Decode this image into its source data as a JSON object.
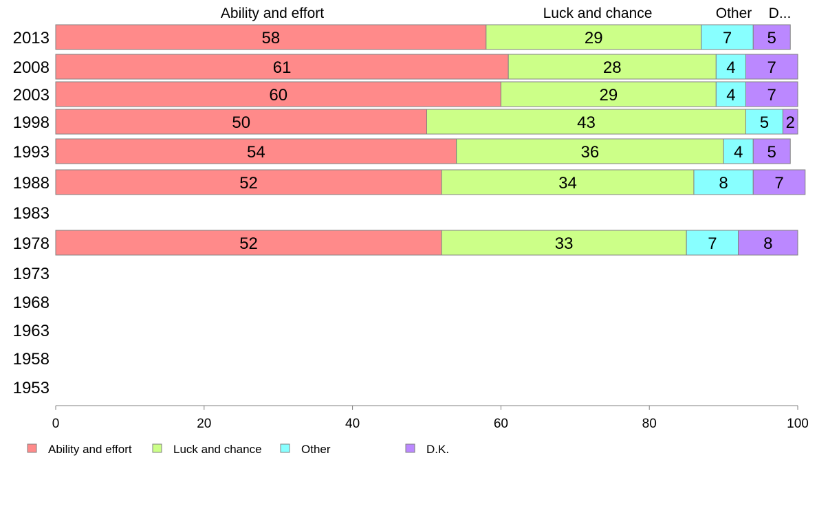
{
  "chart_data": {
    "type": "bar",
    "orientation": "horizontal",
    "stacked": true,
    "categories": [
      "2013",
      "2008",
      "2003",
      "1998",
      "1993",
      "1988",
      "1983",
      "1978",
      "1973",
      "1968",
      "1963",
      "1958",
      "1953"
    ],
    "series": [
      {
        "name": "Ability and effort",
        "color": "#ff8a8a",
        "values": [
          58,
          61,
          60,
          50,
          54,
          52,
          null,
          52,
          null,
          null,
          null,
          null,
          null
        ]
      },
      {
        "name": "Luck and chance",
        "color": "#ccff88",
        "values": [
          29,
          28,
          29,
          43,
          36,
          34,
          null,
          33,
          null,
          null,
          null,
          null,
          null
        ]
      },
      {
        "name": "Other",
        "color": "#88ffff",
        "values": [
          7,
          4,
          4,
          5,
          4,
          8,
          null,
          7,
          null,
          null,
          null,
          null,
          null
        ]
      },
      {
        "name": "D.K.",
        "color": "#bb88ff",
        "values": [
          5,
          7,
          7,
          2,
          5,
          7,
          null,
          8,
          null,
          null,
          null,
          null,
          null
        ]
      }
    ],
    "column_headers": [
      "Ability and effort",
      "Luck and chance",
      "Other",
      "D..."
    ],
    "xlim": [
      0,
      100
    ],
    "x_ticks": [
      0,
      20,
      40,
      60,
      80,
      100
    ],
    "grid": false,
    "legend_position": "bottom",
    "title": "",
    "xlabel": "",
    "ylabel": ""
  }
}
